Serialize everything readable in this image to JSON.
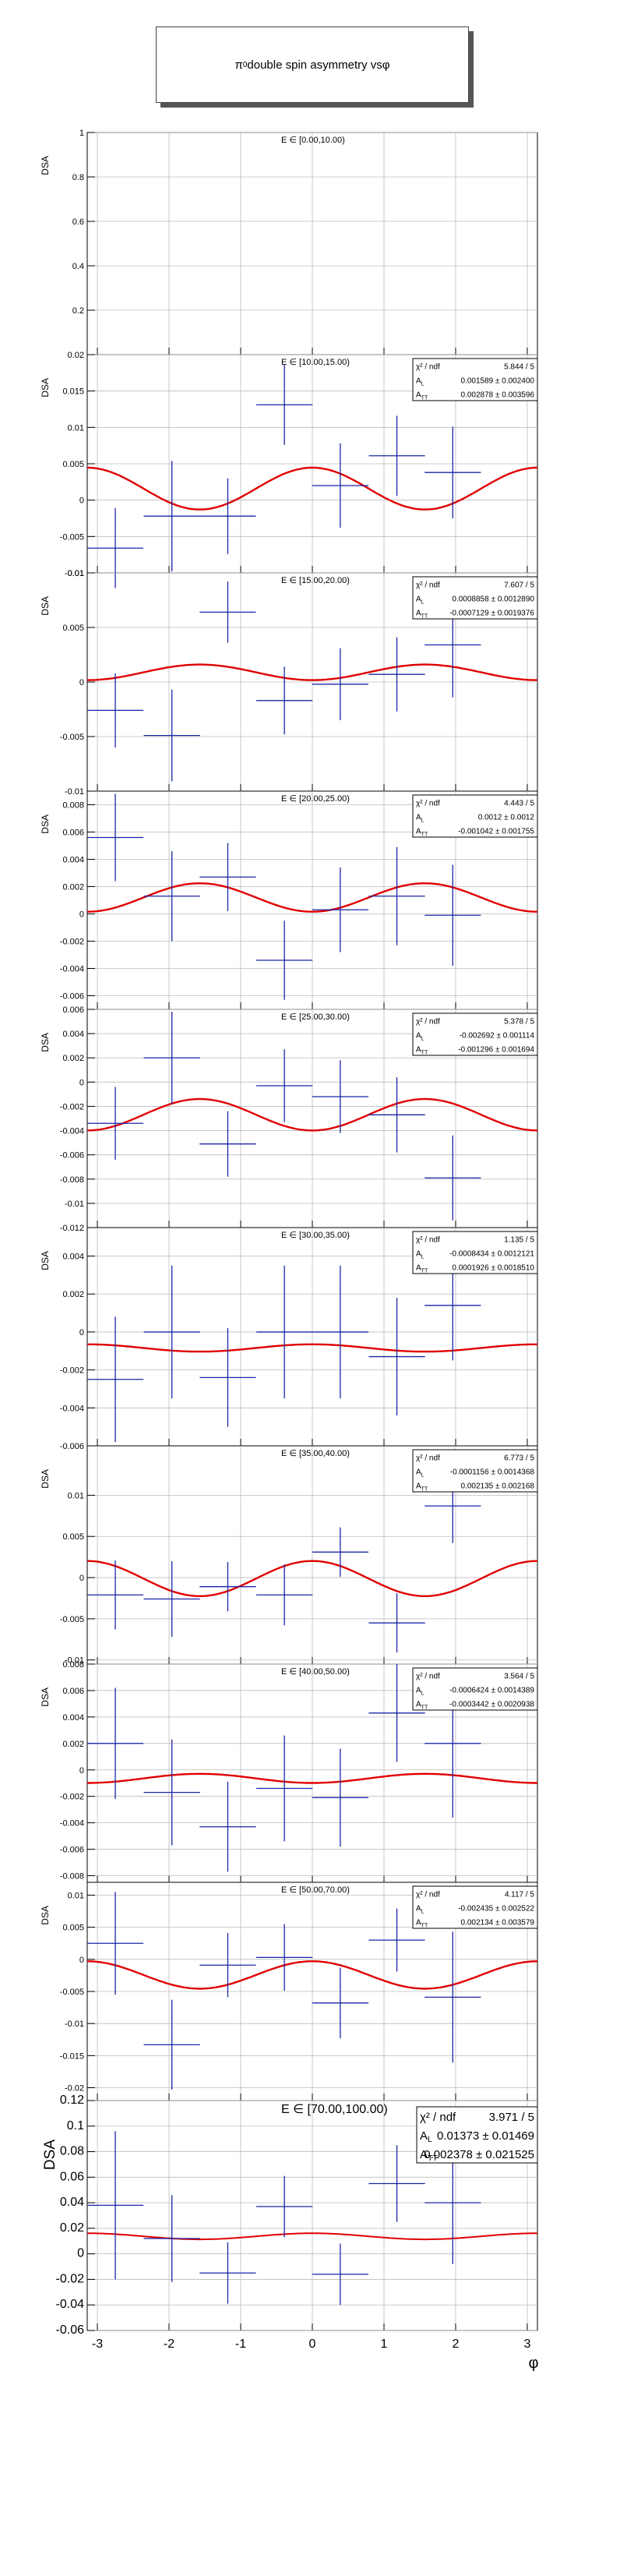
{
  "page_title": {
    "symbol": "π",
    "sup": "0",
    "text": " double spin asymmetry vs ",
    "xvar": "φ"
  },
  "colors": {
    "data": "#1c24a6",
    "fit": "#e00000",
    "grid": "#bbbbbb",
    "axis": "#000000"
  },
  "chart_data": [
    {
      "type": "scatter",
      "ylabel": "DSA",
      "bin_label": "E ∈ [0.00,10.00)",
      "ylim": [
        0,
        1.0
      ],
      "yticks": [
        {
          "v": 0.2,
          "l": "0.2"
        },
        {
          "v": 0.4,
          "l": "0.4"
        },
        {
          "v": 0.6,
          "l": "0.6"
        },
        {
          "v": 0.8,
          "l": "0.8"
        },
        {
          "v": 1.0,
          "l": "1"
        }
      ],
      "points": [],
      "fit": null,
      "stats": null
    },
    {
      "type": "scatter",
      "ylabel": "DSA",
      "bin_label": "E ∈ [10.00,15.00)",
      "ylim": [
        -0.01,
        0.02
      ],
      "yticks": [
        {
          "v": -0.01,
          "l": "-0.01"
        },
        {
          "v": -0.005,
          "l": "-0.005"
        },
        {
          "v": 0,
          "l": "0"
        },
        {
          "v": 0.005,
          "l": "0.005"
        },
        {
          "v": 0.01,
          "l": "0.01"
        },
        {
          "v": 0.015,
          "l": "0.015"
        },
        {
          "v": 0.02,
          "l": "0.02"
        }
      ],
      "points": [
        {
          "x": -2.75,
          "y": -0.0066,
          "ey": 0.0055
        },
        {
          "x": -1.96,
          "y": -0.0022,
          "ey": 0.0076
        },
        {
          "x": -1.18,
          "y": -0.0022,
          "ey": 0.0052
        },
        {
          "x": -0.39,
          "y": 0.0131,
          "ey": 0.0055
        },
        {
          "x": 0.39,
          "y": 0.002,
          "ey": 0.0058
        },
        {
          "x": 1.18,
          "y": 0.0061,
          "ey": 0.0055
        },
        {
          "x": 1.96,
          "y": 0.0038,
          "ey": 0.0063
        }
      ],
      "fit": {
        "AL": 0.001589,
        "ATT": 0.002878
      },
      "stats": {
        "chi_label": "χ² / ndf",
        "chi": "5.844 / 5",
        "al_label": "A_L",
        "al": "0.001589 ± 0.002400",
        "att_label": "A_TT",
        "att": "0.002878 ± 0.003596"
      }
    },
    {
      "type": "scatter",
      "ylabel": "DSA",
      "bin_label": "E ∈ [15.00,20.00)",
      "ylim": [
        -0.01,
        0.01
      ],
      "yticks": [
        {
          "v": -0.01,
          "l": "-0.01"
        },
        {
          "v": -0.005,
          "l": "-0.005"
        },
        {
          "v": 0,
          "l": "0"
        },
        {
          "v": 0.005,
          "l": "0.005"
        },
        {
          "v": 0.01,
          "l": "0.01"
        }
      ],
      "points": [
        {
          "x": -2.75,
          "y": -0.0026,
          "ey": 0.0034
        },
        {
          "x": -1.96,
          "y": -0.0049,
          "ey": 0.0042
        },
        {
          "x": -1.18,
          "y": 0.0064,
          "ey": 0.0028
        },
        {
          "x": -0.39,
          "y": -0.0017,
          "ey": 0.0031
        },
        {
          "x": 0.39,
          "y": -0.0002,
          "ey": 0.0033
        },
        {
          "x": 1.18,
          "y": 0.0007,
          "ey": 0.0034
        },
        {
          "x": 1.96,
          "y": 0.0034,
          "ey": 0.0048
        }
      ],
      "fit": {
        "AL": 0.0008858,
        "ATT": -0.0007129
      },
      "stats": {
        "chi_label": "χ² / ndf",
        "chi": "7.607 / 5",
        "al_label": "A_L",
        "al": "0.0008858 ± 0.0012890",
        "att_label": "A_TT",
        "att": "-0.0007129 ± 0.0019376"
      }
    },
    {
      "type": "scatter",
      "ylabel": "DSA",
      "bin_label": "E ∈ [20.00,25.00)",
      "ylim": [
        -0.007,
        0.009
      ],
      "yticks": [
        {
          "v": -0.006,
          "l": "-0.006"
        },
        {
          "v": -0.004,
          "l": "-0.004"
        },
        {
          "v": -0.002,
          "l": "-0.002"
        },
        {
          "v": 0,
          "l": "0"
        },
        {
          "v": 0.002,
          "l": "0.002"
        },
        {
          "v": 0.004,
          "l": "0.004"
        },
        {
          "v": 0.006,
          "l": "0.006"
        },
        {
          "v": 0.008,
          "l": "0.008"
        }
      ],
      "points": [
        {
          "x": -2.75,
          "y": 0.0056,
          "ey": 0.0032
        },
        {
          "x": -1.96,
          "y": 0.0013,
          "ey": 0.0033
        },
        {
          "x": -1.18,
          "y": 0.0027,
          "ey": 0.0025
        },
        {
          "x": -0.39,
          "y": -0.0034,
          "ey": 0.0029
        },
        {
          "x": 0.39,
          "y": 0.0003,
          "ey": 0.0031
        },
        {
          "x": 1.18,
          "y": 0.0013,
          "ey": 0.0036
        },
        {
          "x": 1.96,
          "y": -0.0001,
          "ey": 0.0037
        }
      ],
      "fit": {
        "AL": 0.0012,
        "ATT": -0.001042
      },
      "stats": {
        "chi_label": "χ² / ndf",
        "chi": "4.443 / 5",
        "al_label": "A_L",
        "al": "0.0012 ± 0.0012",
        "att_label": "A_TT",
        "att": "-0.001042 ± 0.001755"
      }
    },
    {
      "type": "scatter",
      "ylabel": "DSA",
      "bin_label": "E ∈ [25.00,30.00)",
      "ylim": [
        -0.012,
        0.006
      ],
      "yticks": [
        {
          "v": -0.012,
          "l": "-0.012"
        },
        {
          "v": -0.01,
          "l": "-0.01"
        },
        {
          "v": -0.008,
          "l": "-0.008"
        },
        {
          "v": -0.006,
          "l": "-0.006"
        },
        {
          "v": -0.004,
          "l": "-0.004"
        },
        {
          "v": -0.002,
          "l": "-0.002"
        },
        {
          "v": 0,
          "l": "0"
        },
        {
          "v": 0.002,
          "l": "0.002"
        },
        {
          "v": 0.004,
          "l": "0.004"
        },
        {
          "v": 0.006,
          "l": "0.006"
        }
      ],
      "points": [
        {
          "x": -2.75,
          "y": -0.0034,
          "ey": 0.003
        },
        {
          "x": -1.96,
          "y": 0.002,
          "ey": 0.0038
        },
        {
          "x": -1.18,
          "y": -0.0051,
          "ey": 0.0027
        },
        {
          "x": -0.39,
          "y": -0.0003,
          "ey": 0.003
        },
        {
          "x": 0.39,
          "y": -0.0012,
          "ey": 0.003
        },
        {
          "x": 1.18,
          "y": -0.0027,
          "ey": 0.0031
        },
        {
          "x": 1.96,
          "y": -0.0079,
          "ey": 0.0035
        }
      ],
      "fit": {
        "AL": -0.002692,
        "ATT": -0.001296
      },
      "stats": {
        "chi_label": "χ² / ndf",
        "chi": "5.378 / 5",
        "al_label": "A_L",
        "al": "-0.002692 ± 0.001114",
        "att_label": "A_TT",
        "att": "-0.001296 ± 0.001694"
      }
    },
    {
      "type": "scatter",
      "ylabel": "DSA",
      "bin_label": "E ∈ [30.00,35.00)",
      "ylim": [
        -0.006,
        0.0055
      ],
      "yticks": [
        {
          "v": -0.006,
          "l": "-0.006"
        },
        {
          "v": -0.004,
          "l": "-0.004"
        },
        {
          "v": -0.002,
          "l": "-0.002"
        },
        {
          "v": 0,
          "l": "0"
        },
        {
          "v": 0.002,
          "l": "0.002"
        },
        {
          "v": 0.004,
          "l": "0.004"
        }
      ],
      "points": [
        {
          "x": -2.75,
          "y": -0.0025,
          "ey": 0.0033
        },
        {
          "x": -1.96,
          "y": 0.0,
          "ey": 0.0035
        },
        {
          "x": -1.18,
          "y": -0.0024,
          "ey": 0.0026
        },
        {
          "x": -0.39,
          "y": 0.0,
          "ey": 0.0035
        },
        {
          "x": 0.39,
          "y": 0.0,
          "ey": 0.0035
        },
        {
          "x": 1.18,
          "y": -0.0013,
          "ey": 0.0031
        },
        {
          "x": 1.96,
          "y": 0.0014,
          "ey": 0.0029
        }
      ],
      "fit": {
        "AL": -0.0008434,
        "ATT": 0.0001926
      },
      "stats": {
        "chi_label": "χ² / ndf",
        "chi": "1.135 / 5",
        "al_label": "A_L",
        "al": "-0.0008434 ± 0.0012121",
        "att_label": "A_TT",
        "att": "0.0001926 ± 0.0018510"
      }
    },
    {
      "type": "scatter",
      "ylabel": "DSA",
      "bin_label": "E ∈ [35.00,40.00)",
      "ylim": [
        -0.0105,
        0.016
      ],
      "yticks": [
        {
          "v": -0.01,
          "l": "-0.01"
        },
        {
          "v": -0.005,
          "l": "-0.005"
        },
        {
          "v": 0,
          "l": "0"
        },
        {
          "v": 0.005,
          "l": "0.005"
        },
        {
          "v": 0.01,
          "l": "0.01"
        }
      ],
      "points": [
        {
          "x": -2.75,
          "y": -0.0021,
          "ey": 0.0042
        },
        {
          "x": -1.96,
          "y": -0.0026,
          "ey": 0.0046
        },
        {
          "x": -1.18,
          "y": -0.0011,
          "ey": 0.003
        },
        {
          "x": -0.39,
          "y": -0.0021,
          "ey": 0.0037
        },
        {
          "x": 0.39,
          "y": 0.0031,
          "ey": 0.003
        },
        {
          "x": 1.18,
          "y": -0.0055,
          "ey": 0.0036
        },
        {
          "x": 1.96,
          "y": 0.0087,
          "ey": 0.0045
        }
      ],
      "fit": {
        "AL": -0.0001156,
        "ATT": 0.002135
      },
      "stats": {
        "chi_label": "χ² / ndf",
        "chi": "6.773 / 5",
        "al_label": "A_L",
        "al": "-0.0001156 ± 0.0014368",
        "att_label": "A_TT",
        "att": "0.002135 ± 0.002168"
      }
    },
    {
      "type": "scatter",
      "ylabel": "DSA",
      "bin_label": "E ∈ [40.00,50.00)",
      "ylim": [
        -0.0085,
        0.008
      ],
      "yticks": [
        {
          "v": -0.008,
          "l": "-0.008"
        },
        {
          "v": -0.006,
          "l": "-0.006"
        },
        {
          "v": -0.004,
          "l": "-0.004"
        },
        {
          "v": -0.002,
          "l": "-0.002"
        },
        {
          "v": 0,
          "l": "0"
        },
        {
          "v": 0.002,
          "l": "0.002"
        },
        {
          "v": 0.004,
          "l": "0.004"
        },
        {
          "v": 0.006,
          "l": "0.006"
        },
        {
          "v": 0.008,
          "l": "0.008"
        }
      ],
      "points": [
        {
          "x": -2.75,
          "y": 0.002,
          "ey": 0.0042
        },
        {
          "x": -1.96,
          "y": -0.0017,
          "ey": 0.004
        },
        {
          "x": -1.18,
          "y": -0.0043,
          "ey": 0.0034
        },
        {
          "x": -0.39,
          "y": -0.0014,
          "ey": 0.004
        },
        {
          "x": 0.39,
          "y": -0.0021,
          "ey": 0.0037
        },
        {
          "x": 1.18,
          "y": 0.0043,
          "ey": 0.0037
        },
        {
          "x": 1.96,
          "y": 0.002,
          "ey": 0.0056
        }
      ],
      "fit": {
        "AL": -0.0006424,
        "ATT": -0.0003442
      },
      "stats": {
        "chi_label": "χ² / ndf",
        "chi": "3.564 / 5",
        "al_label": "A_L",
        "al": "-0.0006424 ± 0.0014389",
        "att_label": "A_TT",
        "att": "-0.0003442 ± 0.0020938"
      }
    },
    {
      "type": "scatter",
      "ylabel": "DSA",
      "bin_label": "E ∈ [50.00,70.00)",
      "ylim": [
        -0.022,
        0.012
      ],
      "yticks": [
        {
          "v": -0.02,
          "l": "-0.02"
        },
        {
          "v": -0.015,
          "l": "-0.015"
        },
        {
          "v": -0.01,
          "l": "-0.01"
        },
        {
          "v": -0.005,
          "l": "-0.005"
        },
        {
          "v": 0,
          "l": "0"
        },
        {
          "v": 0.005,
          "l": "0.005"
        },
        {
          "v": 0.01,
          "l": "0.01"
        }
      ],
      "points": [
        {
          "x": -2.75,
          "y": 0.0025,
          "ey": 0.008
        },
        {
          "x": -1.96,
          "y": -0.0133,
          "ey": 0.007
        },
        {
          "x": -1.18,
          "y": -0.0009,
          "ey": 0.005
        },
        {
          "x": -0.39,
          "y": 0.0003,
          "ey": 0.0052
        },
        {
          "x": 0.39,
          "y": -0.0068,
          "ey": 0.0055
        },
        {
          "x": 1.18,
          "y": 0.003,
          "ey": 0.0049
        },
        {
          "x": 1.96,
          "y": -0.0059,
          "ey": 0.0102
        }
      ],
      "fit": {
        "AL": -0.002435,
        "ATT": 0.002134
      },
      "stats": {
        "chi_label": "χ² / ndf",
        "chi": "4.117 / 5",
        "al_label": "A_L",
        "al": "-0.002435 ± 0.002522",
        "att_label": "A_TT",
        "att": "0.002134 ± 0.003579"
      }
    },
    {
      "type": "scatter",
      "ylabel": "DSA",
      "bin_label": "E ∈ [70.00,100.00)",
      "ylim": [
        -0.06,
        0.12
      ],
      "yticks": [
        {
          "v": -0.06,
          "l": "-0.06"
        },
        {
          "v": -0.04,
          "l": "-0.04"
        },
        {
          "v": -0.02,
          "l": "-0.02"
        },
        {
          "v": 0,
          "l": "0"
        },
        {
          "v": 0.02,
          "l": "0.02"
        },
        {
          "v": 0.04,
          "l": "0.04"
        },
        {
          "v": 0.06,
          "l": "0.06"
        },
        {
          "v": 0.08,
          "l": "0.08"
        },
        {
          "v": 0.1,
          "l": "0.1"
        },
        {
          "v": 0.12,
          "l": "0.12"
        }
      ],
      "points": [
        {
          "x": -2.75,
          "y": 0.038,
          "ey": 0.058
        },
        {
          "x": -1.96,
          "y": 0.012,
          "ey": 0.034
        },
        {
          "x": -1.18,
          "y": -0.015,
          "ey": 0.024
        },
        {
          "x": -0.39,
          "y": 0.037,
          "ey": 0.024
        },
        {
          "x": 0.39,
          "y": -0.016,
          "ey": 0.024
        },
        {
          "x": 1.18,
          "y": 0.055,
          "ey": 0.03
        },
        {
          "x": 1.96,
          "y": 0.04,
          "ey": 0.048
        }
      ],
      "fit": {
        "AL": 0.01373,
        "ATT": 0.002378
      },
      "stats": {
        "chi_label": "χ² / ndf",
        "chi": "3.971 / 5",
        "al_label": "A_L",
        "al": "0.01373 ± 0.01469",
        "att_label": "A_TT",
        "att": "0.002378 ± 0.021525"
      }
    }
  ],
  "x_axis": {
    "label": "φ",
    "xlim": [
      -3.1416,
      3.1416
    ],
    "ticks": [
      {
        "v": -3,
        "l": "-3"
      },
      {
        "v": -2,
        "l": "-2"
      },
      {
        "v": -1,
        "l": "-1"
      },
      {
        "v": 0,
        "l": "0"
      },
      {
        "v": 1,
        "l": "1"
      },
      {
        "v": 2,
        "l": "2"
      },
      {
        "v": 3,
        "l": "3"
      }
    ]
  }
}
